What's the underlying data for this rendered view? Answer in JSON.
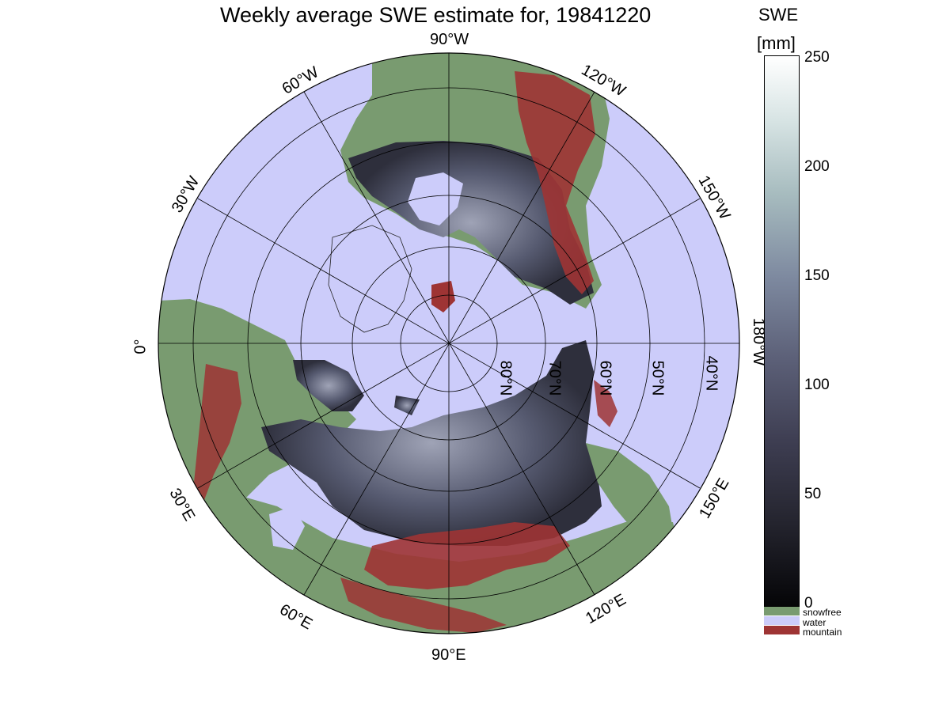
{
  "title": "Weekly average SWE estimate for, 19841220",
  "map": {
    "projection": "north polar stereographic",
    "longitude_labels": [
      "90°W",
      "120°W",
      "150°W",
      "180°W",
      "150°E",
      "120°E",
      "90°E",
      "60°E",
      "30°E",
      "0°",
      "30°W",
      "60°W"
    ],
    "latitude_labels": [
      "80°N",
      "70°N",
      "60°N",
      "50°N",
      "40°N"
    ],
    "colors": {
      "water": "#ccccfa",
      "snowfree": "#799b70",
      "mountain": "#9e3434",
      "swe_low": "#0a0a0e",
      "swe_mid": "#4a4a62",
      "swe_high": "#ffffff"
    }
  },
  "colorbar": {
    "title": "SWE",
    "unit": "[mm]",
    "min": 0,
    "max": 250,
    "ticks": [
      "0",
      "50",
      "100",
      "150",
      "200",
      "250"
    ]
  },
  "legend": {
    "snowfree": "snowfree",
    "water": "water",
    "mountain": "mountain"
  }
}
